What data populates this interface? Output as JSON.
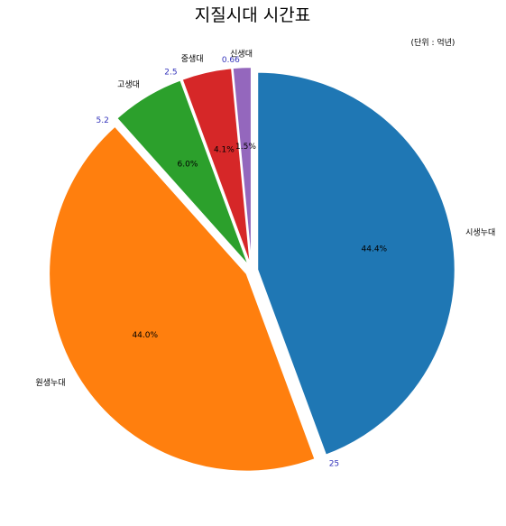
{
  "chart_data": {
    "type": "pie",
    "title": "지질시대 시간표",
    "annotation": "(단위 : 억년)",
    "start_angle_deg": 90,
    "direction": "clockwise",
    "exploded": true,
    "slices": [
      {
        "label": "시생누대",
        "value": 25,
        "percent_label": "44.4%",
        "boundary_label": "25",
        "color": "#1f77b4"
      },
      {
        "label": "원생누대",
        "value": 24.8,
        "percent_label": "44.0%",
        "boundary_label": "5.2",
        "color": "#ff7f0e"
      },
      {
        "label": "고생대",
        "value": 3.38,
        "percent_label": "6.0%",
        "boundary_label": "2.5",
        "color": "#2ca02c"
      },
      {
        "label": "중생대",
        "value": 2.31,
        "percent_label": "4.1%",
        "boundary_label": "0.66",
        "color": "#d62728"
      },
      {
        "label": "신생대",
        "value": 0.85,
        "percent_label": "1.5%",
        "boundary_label": "",
        "color": "#9467bd"
      }
    ],
    "boundary_label_color": "#3333bb"
  }
}
